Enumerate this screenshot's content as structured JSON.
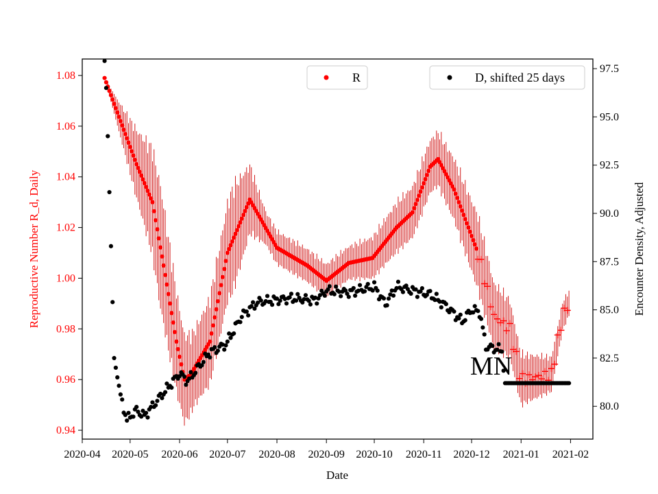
{
  "chart_data": {
    "type": "scatter",
    "xlabel": "Date",
    "ylabel_left": "Reproductive Number R_d, Daily",
    "ylabel_right": "Encounter Density, Adjusted",
    "x_range": [
      "2020-04-01",
      "2021-02-15"
    ],
    "y_left_range": [
      0.9365,
      1.0865
    ],
    "y_right_range": [
      78.3,
      98.0
    ],
    "x_ticks": [
      "2020-04",
      "2020-05",
      "2020-06",
      "2020-07",
      "2020-08",
      "2020-09",
      "2020-10",
      "2020-11",
      "2020-12",
      "2021-01",
      "2021-02"
    ],
    "y_left_ticks": [
      "0.94",
      "0.96",
      "0.98",
      "1.00",
      "1.02",
      "1.04",
      "1.06",
      "1.08"
    ],
    "y_right_ticks": [
      "80.0",
      "82.5",
      "85.0",
      "87.5",
      "90.0",
      "92.5",
      "95.0",
      "97.5"
    ],
    "legend": {
      "left": {
        "label": "R",
        "placement": "top-center"
      },
      "right": {
        "label": "D, shifted 25 days",
        "placement": "top-right"
      }
    },
    "annotation": "MN",
    "colors": {
      "r_series": "#ff0000",
      "r_error": "#cc0000",
      "d_series": "#000000",
      "left_axis": "#ff0000"
    },
    "series_R": {
      "name": "R",
      "axis": "left",
      "estimate_start": "2020-12-05",
      "keypoints": [
        [
          "2020-04-15",
          1.079
        ],
        [
          "2020-04-25",
          1.062
        ],
        [
          "2020-05-05",
          1.045
        ],
        [
          "2020-05-15",
          1.03
        ],
        [
          "2020-05-22",
          1.005
        ],
        [
          "2020-05-30",
          0.975
        ],
        [
          "2020-06-04",
          0.96
        ],
        [
          "2020-06-08",
          0.962
        ],
        [
          "2020-06-20",
          0.975
        ],
        [
          "2020-07-01",
          1.01
        ],
        [
          "2020-07-15",
          1.031
        ],
        [
          "2020-08-01",
          1.012
        ],
        [
          "2020-08-20",
          1.005
        ],
        [
          "2020-09-01",
          0.999
        ],
        [
          "2020-09-15",
          1.006
        ],
        [
          "2020-09-30",
          1.008
        ],
        [
          "2020-10-15",
          1.02
        ],
        [
          "2020-10-25",
          1.026
        ],
        [
          "2020-11-05",
          1.044
        ],
        [
          "2020-11-10",
          1.047
        ],
        [
          "2020-11-20",
          1.035
        ],
        [
          "2020-12-05",
          1.01
        ],
        [
          "2020-12-15",
          0.985
        ],
        [
          "2020-12-25",
          0.98
        ],
        [
          "2021-01-01",
          0.96
        ],
        [
          "2021-01-20",
          0.962
        ],
        [
          "2021-01-27",
          0.985
        ],
        [
          "2021-01-31",
          0.99
        ]
      ],
      "error_band": [
        [
          "2020-04-15",
          0.0
        ],
        [
          "2020-05-01",
          0.013
        ],
        [
          "2020-05-20",
          0.03
        ],
        [
          "2020-06-10",
          0.018
        ],
        [
          "2020-07-05",
          0.025
        ],
        [
          "2020-07-25",
          0.008
        ],
        [
          "2020-09-15",
          0.008
        ],
        [
          "2020-10-15",
          0.012
        ],
        [
          "2020-11-10",
          0.013
        ],
        [
          "2020-12-05",
          0.018
        ],
        [
          "2021-01-31",
          0.006
        ]
      ]
    },
    "series_D": {
      "name": "D, shifted 25 days",
      "axis": "right",
      "keypoints": [
        [
          "2020-04-15",
          97.9
        ],
        [
          "2020-04-16",
          96.5
        ],
        [
          "2020-04-17",
          94.0
        ],
        [
          "2020-04-18",
          91.1
        ],
        [
          "2020-04-19",
          88.3
        ],
        [
          "2020-04-20",
          85.4
        ],
        [
          "2020-04-21",
          82.5
        ],
        [
          "2020-04-25",
          80.5
        ],
        [
          "2020-04-29",
          79.3
        ],
        [
          "2020-05-05",
          79.8
        ],
        [
          "2020-05-10",
          79.5
        ],
        [
          "2020-05-20",
          80.5
        ],
        [
          "2020-06-01",
          81.7
        ],
        [
          "2020-06-06",
          81.3
        ],
        [
          "2020-06-20",
          82.8
        ],
        [
          "2020-06-30",
          83.2
        ],
        [
          "2020-07-10",
          84.7
        ],
        [
          "2020-07-20",
          85.4
        ],
        [
          "2020-08-10",
          85.6
        ],
        [
          "2020-08-25",
          85.5
        ],
        [
          "2020-09-01",
          86.0
        ],
        [
          "2020-09-15",
          85.9
        ],
        [
          "2020-10-01",
          86.2
        ],
        [
          "2020-10-08",
          85.3
        ],
        [
          "2020-10-15",
          86.2
        ],
        [
          "2020-10-25",
          86.0
        ],
        [
          "2020-11-05",
          85.8
        ],
        [
          "2020-11-15",
          85.2
        ],
        [
          "2020-11-25",
          84.4
        ],
        [
          "2020-12-01",
          85.0
        ],
        [
          "2020-12-06",
          84.9
        ],
        [
          "2020-12-10",
          83.1
        ],
        [
          "2020-12-20",
          82.9
        ],
        [
          "2020-12-22",
          81.2
        ],
        [
          "2021-01-31",
          81.2
        ]
      ]
    }
  }
}
